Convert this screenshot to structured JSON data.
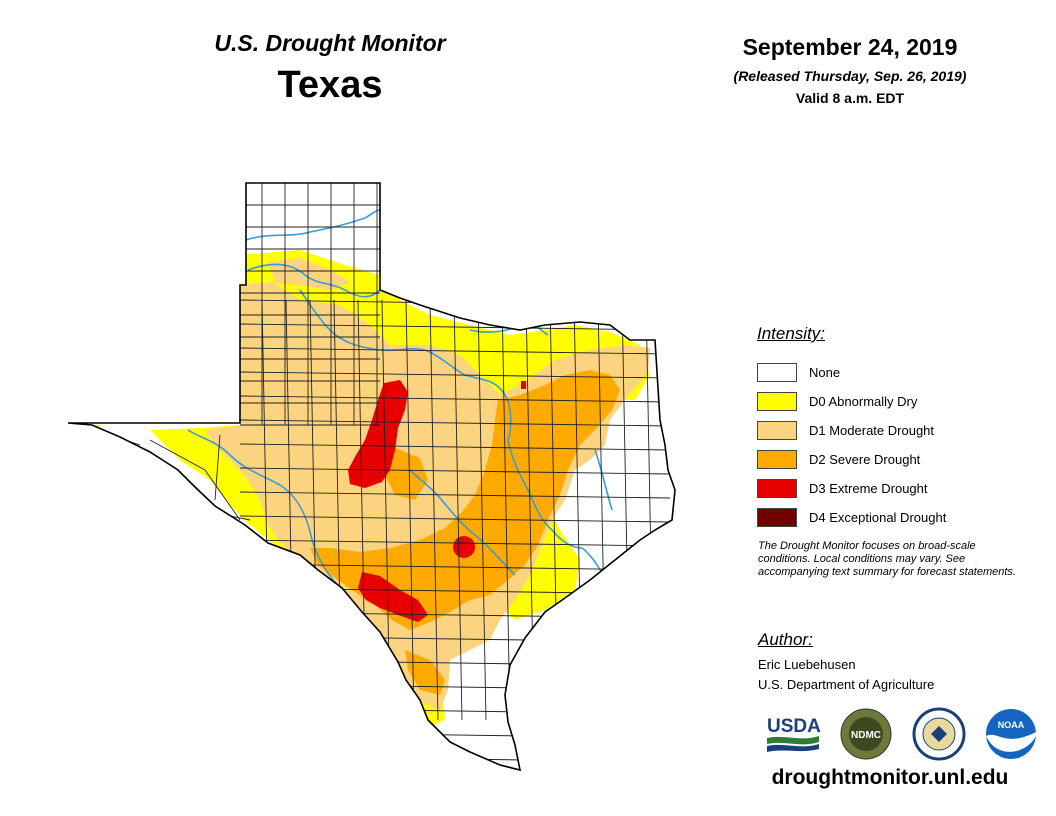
{
  "header": {
    "product": "U.S. Drought Monitor",
    "region": "Texas",
    "date": "September 24, 2019",
    "released": "(Released Thursday, Sep. 26, 2019)",
    "valid": "Valid 8 a.m. EDT"
  },
  "legend": {
    "title": "Intensity:",
    "categories": [
      {
        "label": "None",
        "color": "#ffffff"
      },
      {
        "label": "D0 Abnormally Dry",
        "color": "#ffff00"
      },
      {
        "label": "D1 Moderate Drought",
        "color": "#fcd37f"
      },
      {
        "label": "D2 Severe Drought",
        "color": "#ffaa00"
      },
      {
        "label": "D3 Extreme Drought",
        "color": "#e60000"
      },
      {
        "label": "D4 Exceptional Drought",
        "color": "#730000"
      }
    ]
  },
  "note": "The Drought Monitor focuses on broad-scale conditions. Local conditions may vary. See accompanying text summary for forecast statements.",
  "author": {
    "title": "Author:",
    "name": "Eric Luebehusen",
    "org": "U.S. Department of Agriculture"
  },
  "logos": {
    "usda": "USDA",
    "ndmc": "NDMC",
    "noaa": "NOAA"
  },
  "url": "droughtmonitor.unl.edu",
  "map": {
    "river_color": "#3a9bd9",
    "county_line_color": "#222222"
  }
}
